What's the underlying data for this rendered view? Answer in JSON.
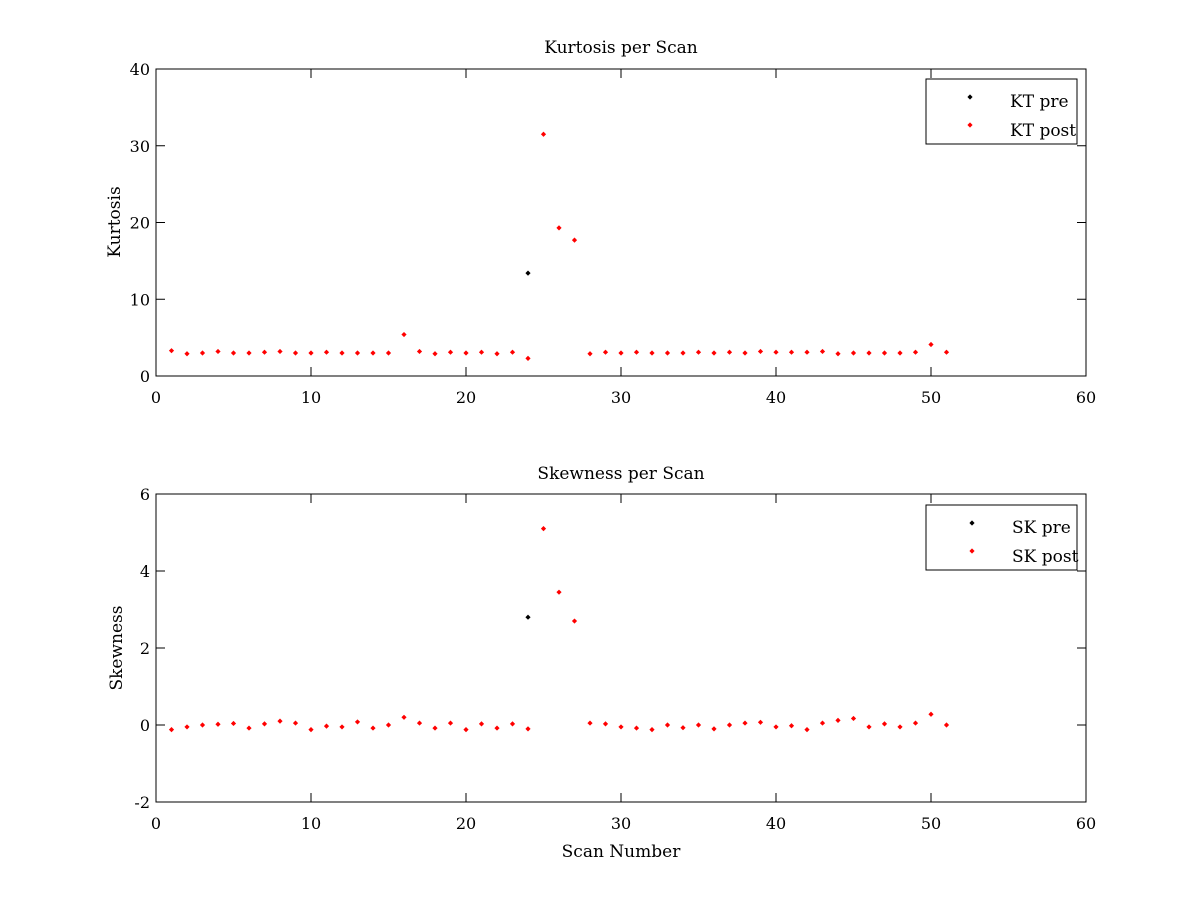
{
  "chart_data": [
    {
      "type": "scatter",
      "title": "Kurtosis per Scan",
      "xlabel": "",
      "ylabel": "Kurtosis",
      "xlim": [
        0,
        60
      ],
      "ylim": [
        0,
        40
      ],
      "xticks": [
        0,
        10,
        20,
        30,
        40,
        50,
        60
      ],
      "yticks": [
        0,
        10,
        20,
        30,
        40
      ],
      "grid": false,
      "legend_position": "top-right",
      "series": [
        {
          "name": "KT pre",
          "color": "#000000",
          "marker": "diamond",
          "x": [
            24
          ],
          "y": [
            13.4
          ]
        },
        {
          "name": "KT post",
          "color": "#ff0000",
          "marker": "diamond",
          "x": [
            1,
            2,
            3,
            4,
            5,
            6,
            7,
            8,
            9,
            10,
            11,
            12,
            13,
            14,
            15,
            16,
            17,
            18,
            19,
            20,
            21,
            22,
            23,
            24,
            25,
            26,
            27,
            28,
            29,
            30,
            31,
            32,
            33,
            34,
            35,
            36,
            37,
            38,
            39,
            40,
            41,
            42,
            43,
            44,
            45,
            46,
            47,
            48,
            49,
            50,
            51
          ],
          "y": [
            3.3,
            2.9,
            3.0,
            3.2,
            3.0,
            3.0,
            3.1,
            3.2,
            3.0,
            3.0,
            3.1,
            3.0,
            3.0,
            3.0,
            3.0,
            5.4,
            3.2,
            2.9,
            3.1,
            3.0,
            3.1,
            2.9,
            3.1,
            2.3,
            31.5,
            19.3,
            17.7,
            2.9,
            3.1,
            3.0,
            3.1,
            3.0,
            3.0,
            3.0,
            3.1,
            3.0,
            3.1,
            3.0,
            3.2,
            3.1,
            3.1,
            3.1,
            3.2,
            2.9,
            3.0,
            3.0,
            3.0,
            3.0,
            3.1,
            4.1,
            3.1
          ]
        }
      ]
    },
    {
      "type": "scatter",
      "title": "Skewness per Scan",
      "xlabel": "Scan Number",
      "ylabel": "Skewness",
      "xlim": [
        0,
        60
      ],
      "ylim": [
        -2,
        6
      ],
      "xticks": [
        0,
        10,
        20,
        30,
        40,
        50,
        60
      ],
      "yticks": [
        -2,
        0,
        2,
        4,
        6
      ],
      "grid": false,
      "legend_position": "top-right",
      "series": [
        {
          "name": "SK pre",
          "color": "#000000",
          "marker": "diamond",
          "x": [
            24
          ],
          "y": [
            2.8
          ]
        },
        {
          "name": "SK post",
          "color": "#ff0000",
          "marker": "diamond",
          "x": [
            1,
            2,
            3,
            4,
            5,
            6,
            7,
            8,
            9,
            10,
            11,
            12,
            13,
            14,
            15,
            16,
            17,
            18,
            19,
            20,
            21,
            22,
            23,
            24,
            25,
            26,
            27,
            28,
            29,
            30,
            31,
            32,
            33,
            34,
            35,
            36,
            37,
            38,
            39,
            40,
            41,
            42,
            43,
            44,
            45,
            46,
            47,
            48,
            49,
            50,
            51
          ],
          "y": [
            -0.12,
            -0.05,
            0.0,
            0.02,
            0.04,
            -0.08,
            0.03,
            0.1,
            0.05,
            -0.12,
            -0.03,
            -0.05,
            0.08,
            -0.08,
            0.0,
            0.2,
            0.05,
            -0.08,
            0.05,
            -0.12,
            0.03,
            -0.08,
            0.03,
            -0.1,
            5.1,
            3.45,
            2.7,
            0.05,
            0.03,
            -0.05,
            -0.08,
            -0.12,
            0.0,
            -0.07,
            0.0,
            -0.1,
            0.0,
            0.05,
            0.07,
            -0.05,
            -0.02,
            -0.12,
            0.05,
            0.12,
            0.17,
            -0.05,
            0.03,
            -0.05,
            0.05,
            0.28,
            0.0
          ]
        }
      ]
    }
  ]
}
